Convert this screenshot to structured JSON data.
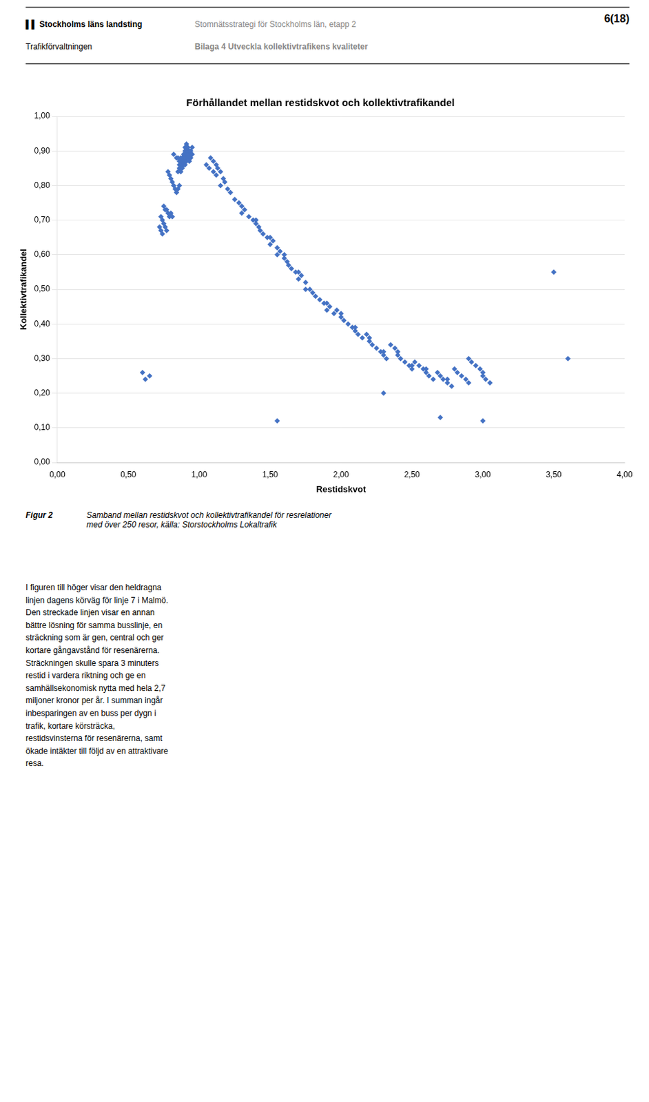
{
  "chart_data": {
    "type": "scatter",
    "title": "Förhållandet mellan restidskvot och kollektivtrafikandel",
    "xlabel": "Restidskvot",
    "ylabel": "Kollektivtrafikandel",
    "xlim": [
      0.0,
      4.0
    ],
    "ylim": [
      0.0,
      1.0
    ],
    "xticks": [
      {
        "value": 0.0,
        "label": "0,00"
      },
      {
        "value": 0.5,
        "label": "0,50"
      },
      {
        "value": 1.0,
        "label": "1,00"
      },
      {
        "value": 1.5,
        "label": "1,50"
      },
      {
        "value": 2.0,
        "label": "2,00"
      },
      {
        "value": 2.5,
        "label": "2,50"
      },
      {
        "value": 3.0,
        "label": "3,00"
      },
      {
        "value": 3.5,
        "label": "3,50"
      },
      {
        "value": 4.0,
        "label": "4,00"
      }
    ],
    "yticks": [
      {
        "value": 0.0,
        "label": "0,00"
      },
      {
        "value": 0.1,
        "label": "0,10"
      },
      {
        "value": 0.2,
        "label": "0,20"
      },
      {
        "value": 0.3,
        "label": "0,30"
      },
      {
        "value": 0.4,
        "label": "0,40"
      },
      {
        "value": 0.5,
        "label": "0,50"
      },
      {
        "value": 0.6,
        "label": "0,60"
      },
      {
        "value": 0.7,
        "label": "0,70"
      },
      {
        "value": 0.8,
        "label": "0,80"
      },
      {
        "value": 0.9,
        "label": "0,90"
      },
      {
        "value": 1.0,
        "label": "1,00"
      }
    ],
    "grid": "y",
    "color": "#4472C4",
    "marker": "diamond",
    "annotations": [
      "▌▌ Stockholms läns landsting",
      "Trafikförvaltningen",
      "Stomnätsstrategi för Stockholms län, etapp 2",
      "Bilaga 4 Utveckla kollektivtrafikens kvaliteter",
      "6(18)",
      "Figur 2",
      "Samband mellan restidskvot och kollektivtrafikandel för resrelationer\nmed över 250 resor, källa: Storstockholms Lokaltrafik",
      "I figuren till höger visar den heldragna\nlinjen dagens körväg för linje 7 i Malmö.\nDen streckade linjen visar en annan\nbättre lösning för samma busslinje, en\nsträckning som är gen, central och ger\nkortare gångavstånd för resenärerna.\nSträckningen skulle spara 3 minuters\nrestid i vardera riktning och ge en\nsamhällsekonomisk nytta med hela 2,7\nmiljoner kronor per år. I summan ingår\ninbesparingen av en buss per dygn i\ntrafik, kortare körsträcka,\nrestidsvinsterna för resenärerna, samt\nökade intäkter till följd av en attraktivare\nresa."
    ],
    "x": [
      0.82,
      0.84,
      0.85,
      0.85,
      0.86,
      0.86,
      0.86,
      0.87,
      0.87,
      0.87,
      0.87,
      0.88,
      0.88,
      0.88,
      0.88,
      0.89,
      0.89,
      0.89,
      0.89,
      0.9,
      0.9,
      0.9,
      0.9,
      0.9,
      0.9,
      0.91,
      0.91,
      0.91,
      0.91,
      0.91,
      0.91,
      0.92,
      0.92,
      0.92,
      0.92,
      0.93,
      0.93,
      0.93,
      0.93,
      0.94,
      0.94,
      0.94,
      0.95,
      0.95,
      0.78,
      0.79,
      0.8,
      0.81,
      0.82,
      0.83,
      0.84,
      0.85,
      0.86,
      0.75,
      0.76,
      0.77,
      0.78,
      0.79,
      0.8,
      0.81,
      0.73,
      0.74,
      0.75,
      0.76,
      0.77,
      0.72,
      0.73,
      0.74,
      1.05,
      1.07,
      1.08,
      1.1,
      1.1,
      1.12,
      1.12,
      1.13,
      1.15,
      1.15,
      1.17,
      1.18,
      1.2,
      1.22,
      1.25,
      1.28,
      1.3,
      1.3,
      1.32,
      1.35,
      1.38,
      1.4,
      1.4,
      1.42,
      1.43,
      1.45,
      1.48,
      1.5,
      1.5,
      1.52,
      1.55,
      1.55,
      1.57,
      1.6,
      1.6,
      1.62,
      1.63,
      1.65,
      1.68,
      1.7,
      1.7,
      1.72,
      1.75,
      1.75,
      1.78,
      1.8,
      1.82,
      1.85,
      1.88,
      1.9,
      1.9,
      1.92,
      1.95,
      1.97,
      2.0,
      2.0,
      2.02,
      2.05,
      2.08,
      2.1,
      2.1,
      2.12,
      2.15,
      2.18,
      2.2,
      2.2,
      2.22,
      2.25,
      2.28,
      2.3,
      2.3,
      2.32,
      2.35,
      2.38,
      2.4,
      2.4,
      2.42,
      2.45,
      2.48,
      2.5,
      2.5,
      2.52,
      2.55,
      2.58,
      2.6,
      2.6,
      2.62,
      2.65,
      2.68,
      2.7,
      2.72,
      2.75,
      2.75,
      2.78,
      2.8,
      2.82,
      2.85,
      2.88,
      2.9,
      2.9,
      2.92,
      2.95,
      2.98,
      3.0,
      3.0,
      3.02,
      3.05,
      3.5,
      3.6,
      1.55,
      2.3,
      2.7,
      3.0,
      0.6,
      0.62,
      0.65
    ],
    "values": [
      0.89,
      0.88,
      0.88,
      0.84,
      0.87,
      0.86,
      0.85,
      0.88,
      0.87,
      0.86,
      0.84,
      0.88,
      0.87,
      0.86,
      0.85,
      0.89,
      0.88,
      0.87,
      0.86,
      0.91,
      0.9,
      0.89,
      0.88,
      0.87,
      0.86,
      0.92,
      0.91,
      0.9,
      0.89,
      0.88,
      0.87,
      0.91,
      0.9,
      0.89,
      0.88,
      0.9,
      0.89,
      0.88,
      0.87,
      0.9,
      0.89,
      0.88,
      0.91,
      0.89,
      0.84,
      0.83,
      0.82,
      0.81,
      0.8,
      0.79,
      0.78,
      0.79,
      0.8,
      0.74,
      0.73,
      0.73,
      0.72,
      0.71,
      0.72,
      0.71,
      0.71,
      0.7,
      0.69,
      0.68,
      0.67,
      0.68,
      0.67,
      0.66,
      0.86,
      0.85,
      0.88,
      0.87,
      0.84,
      0.86,
      0.83,
      0.85,
      0.84,
      0.8,
      0.82,
      0.81,
      0.79,
      0.78,
      0.76,
      0.75,
      0.74,
      0.72,
      0.73,
      0.71,
      0.7,
      0.69,
      0.7,
      0.68,
      0.67,
      0.66,
      0.65,
      0.65,
      0.63,
      0.64,
      0.62,
      0.6,
      0.61,
      0.59,
      0.6,
      0.58,
      0.57,
      0.56,
      0.55,
      0.55,
      0.53,
      0.54,
      0.52,
      0.5,
      0.5,
      0.49,
      0.48,
      0.47,
      0.46,
      0.46,
      0.44,
      0.45,
      0.43,
      0.44,
      0.43,
      0.42,
      0.41,
      0.4,
      0.39,
      0.39,
      0.38,
      0.37,
      0.36,
      0.37,
      0.36,
      0.35,
      0.34,
      0.33,
      0.32,
      0.32,
      0.31,
      0.3,
      0.34,
      0.33,
      0.32,
      0.31,
      0.3,
      0.29,
      0.28,
      0.28,
      0.27,
      0.29,
      0.28,
      0.27,
      0.27,
      0.26,
      0.25,
      0.24,
      0.26,
      0.25,
      0.24,
      0.24,
      0.23,
      0.22,
      0.27,
      0.26,
      0.25,
      0.24,
      0.23,
      0.3,
      0.29,
      0.28,
      0.27,
      0.26,
      0.25,
      0.24,
      0.23,
      0.55,
      0.3,
      0.12,
      0.2,
      0.13,
      0.12,
      0.26,
      0.24,
      0.25
    ]
  }
}
